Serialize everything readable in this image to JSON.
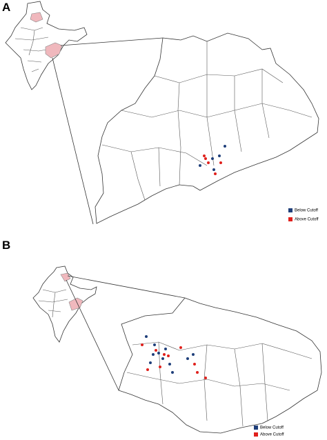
{
  "panels": [
    {
      "label": "A",
      "legend": [
        {
          "label": "Below Cutoff",
          "color": "#1f3f7a"
        },
        {
          "label": "Above Cutoff",
          "color": "#e0201c"
        }
      ]
    },
    {
      "label": "B",
      "legend": [
        {
          "label": "Below Cutoff",
          "color": "#1f3f7a"
        },
        {
          "label": "Above Cutoff",
          "color": "#e0201c"
        }
      ]
    }
  ]
}
